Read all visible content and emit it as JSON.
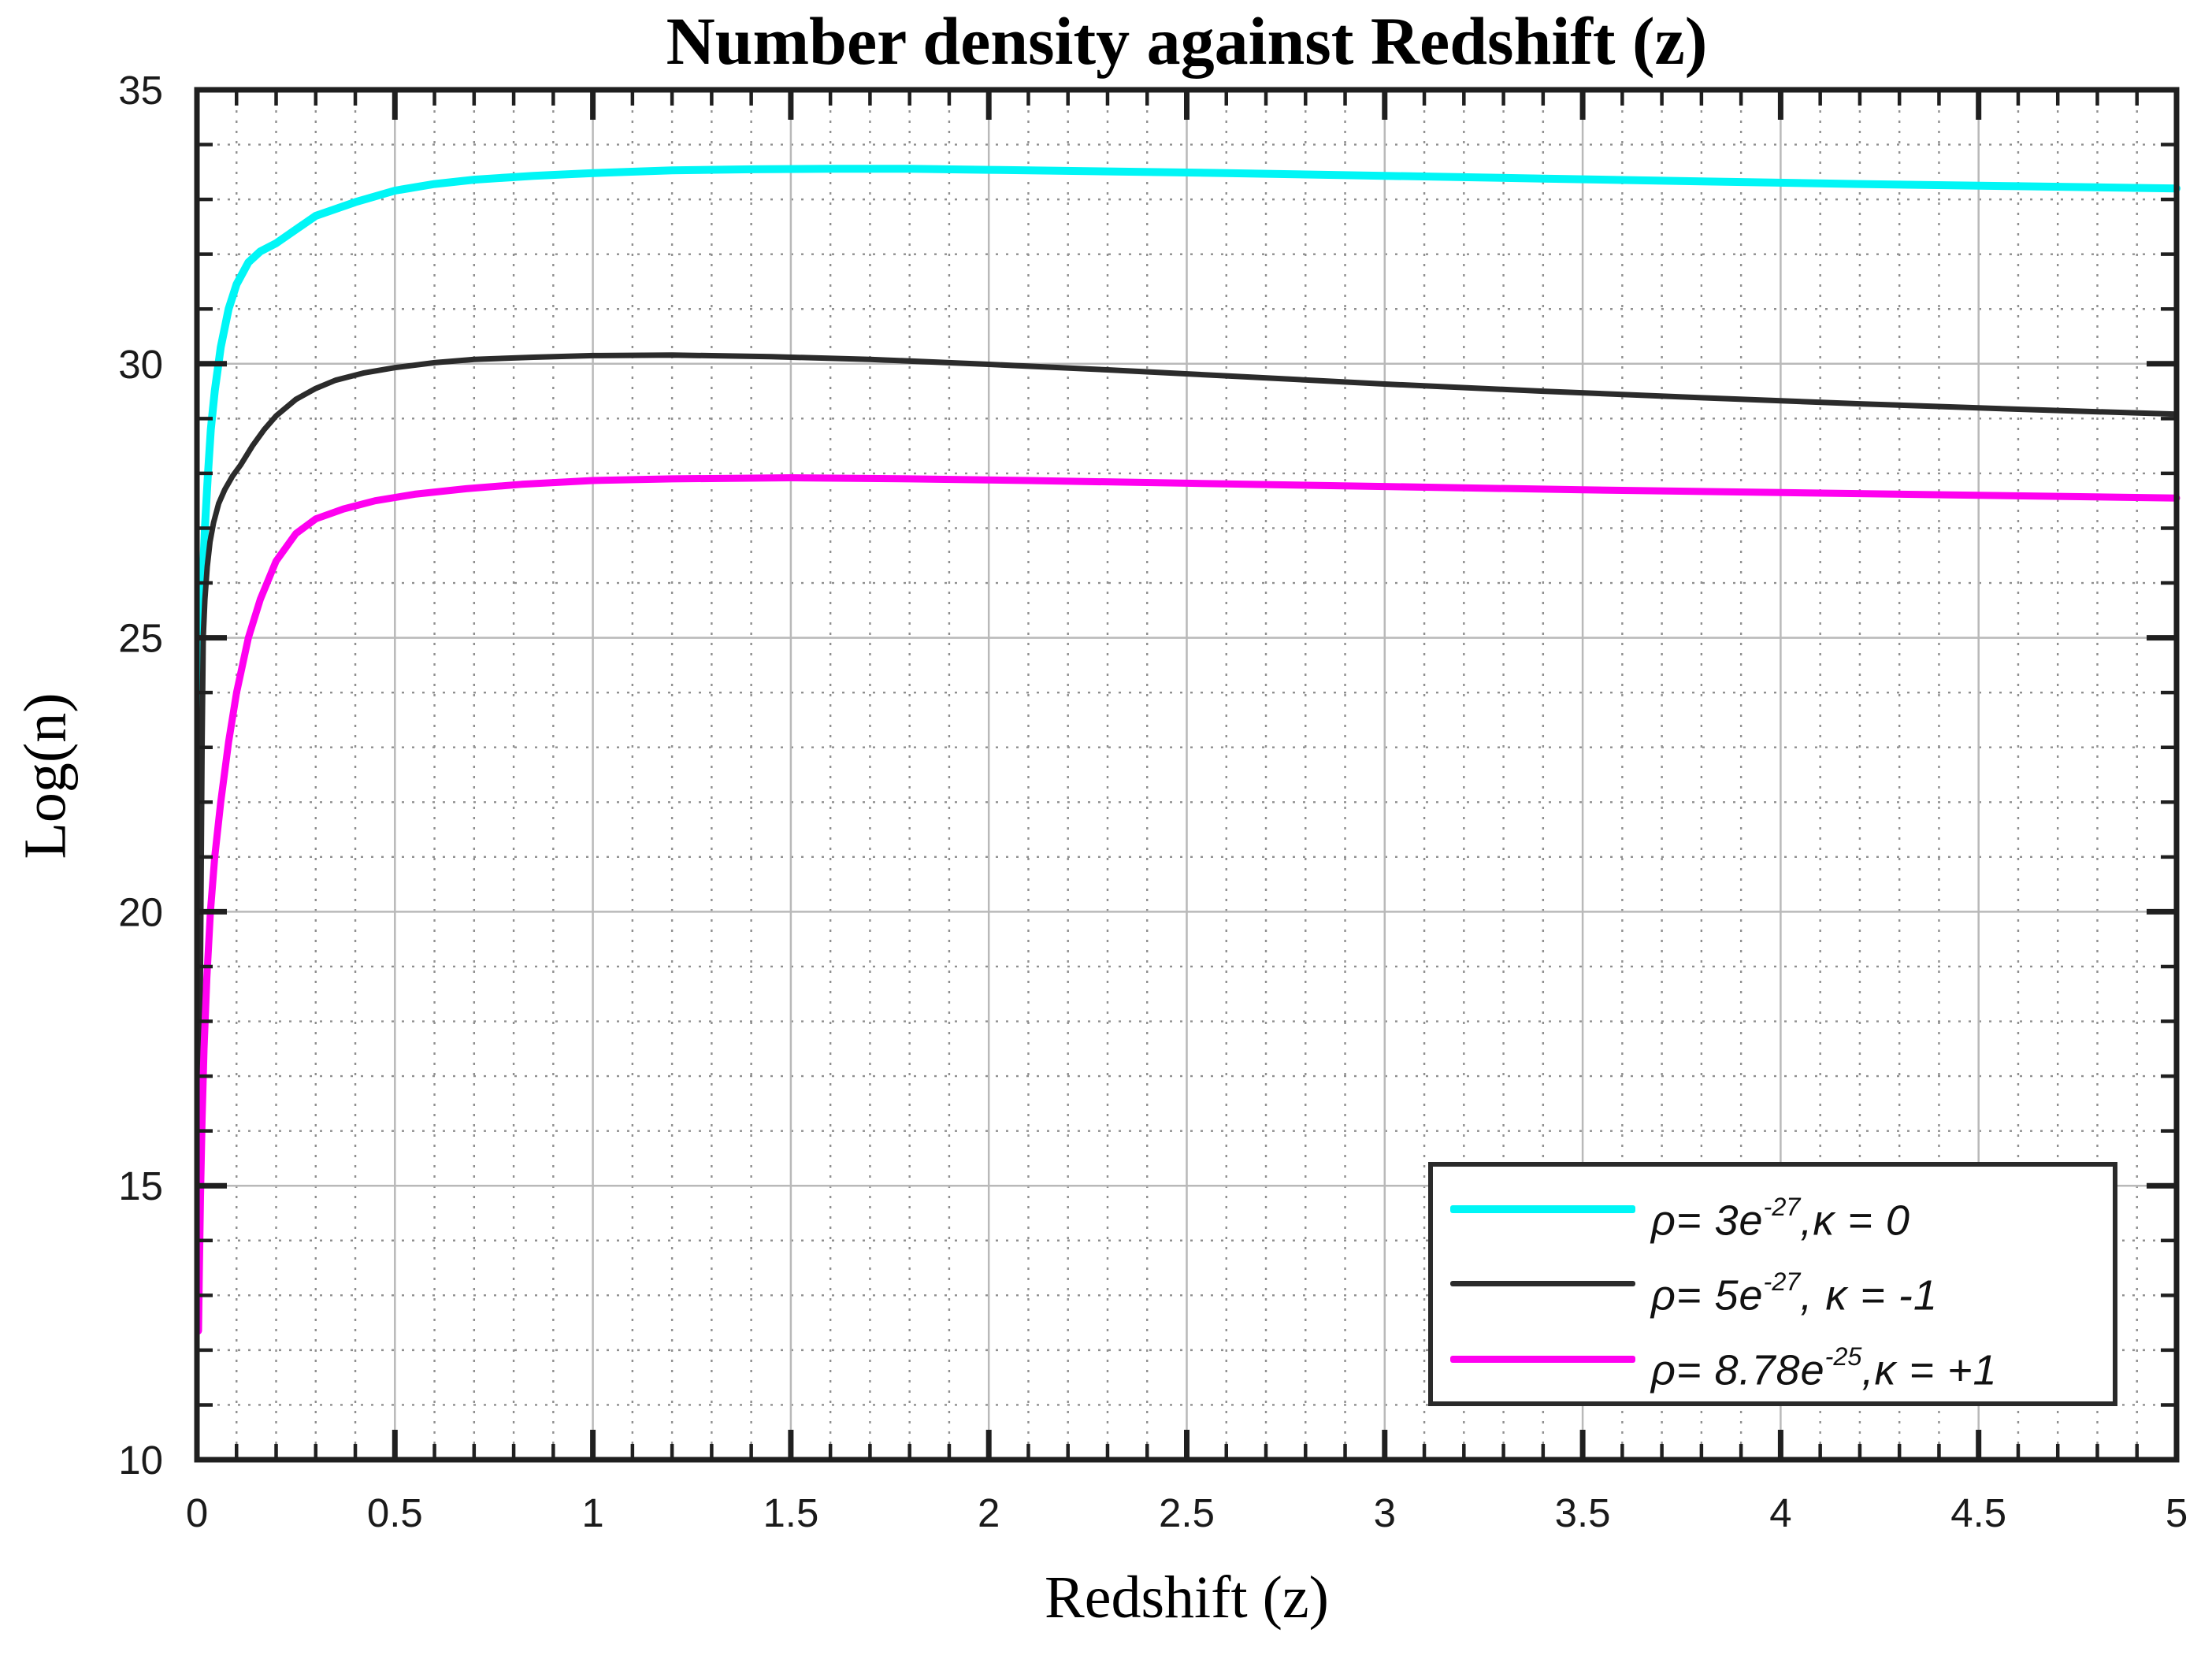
{
  "chart_data": {
    "type": "line",
    "title": "Number density against Redshift (z)",
    "xlabel": "Redshift (z)",
    "ylabel": "Log(n)",
    "xlim": [
      0,
      5
    ],
    "ylim": [
      10,
      35
    ],
    "x_axis": {
      "major_ticks": [
        0,
        0.5,
        1,
        1.5,
        2,
        2.5,
        3,
        3.5,
        4,
        4.5,
        5
      ],
      "tick_labels": [
        "0",
        "0.5",
        "1",
        "1.5",
        "2",
        "2.5",
        "3",
        "3.5",
        "4",
        "4.5",
        "5"
      ],
      "minor_step": 0.1
    },
    "y_axis": {
      "major_ticks": [
        10,
        15,
        20,
        25,
        30,
        35
      ],
      "tick_labels": [
        "10",
        "15",
        "20",
        "25",
        "30",
        "35"
      ],
      "minor_step": 1
    },
    "grid": {
      "major_on": true,
      "minor_on": true,
      "major_color": "#b9b9b9",
      "minor_color": "#8f8f8f",
      "minor_style": "dotted"
    },
    "frame_color": "#1f1f1f",
    "legend_position": "lower right",
    "series": [
      {
        "name": "rho = 3e-27, kappa = 0",
        "color": "#00f6f6",
        "line_width": 10,
        "legend_prefix": "ρ= 3e",
        "legend_exp": "-27",
        "legend_suffix": ",κ = 0",
        "points": [
          [
            0.003,
            21.5
          ],
          [
            0.005,
            22.8
          ],
          [
            0.007,
            23.8
          ],
          [
            0.01,
            24.9
          ],
          [
            0.014,
            25.9
          ],
          [
            0.02,
            27.0
          ],
          [
            0.027,
            27.9
          ],
          [
            0.035,
            28.8
          ],
          [
            0.045,
            29.5
          ],
          [
            0.06,
            30.3
          ],
          [
            0.08,
            31.0
          ],
          [
            0.1,
            31.45
          ],
          [
            0.13,
            31.85
          ],
          [
            0.16,
            32.05
          ],
          [
            0.2,
            32.2
          ],
          [
            0.25,
            32.45
          ],
          [
            0.3,
            32.7
          ],
          [
            0.4,
            32.95
          ],
          [
            0.5,
            33.16
          ],
          [
            0.6,
            33.28
          ],
          [
            0.7,
            33.36
          ],
          [
            0.85,
            33.43
          ],
          [
            1.0,
            33.48
          ],
          [
            1.2,
            33.53
          ],
          [
            1.4,
            33.55
          ],
          [
            1.6,
            33.56
          ],
          [
            1.8,
            33.56
          ],
          [
            2.0,
            33.54
          ],
          [
            2.3,
            33.51
          ],
          [
            2.6,
            33.48
          ],
          [
            3.0,
            33.43
          ],
          [
            3.4,
            33.38
          ],
          [
            3.8,
            33.33
          ],
          [
            4.2,
            33.28
          ],
          [
            4.6,
            33.24
          ],
          [
            5.0,
            33.2
          ]
        ]
      },
      {
        "name": "rho = 5e-27, kappa = -1",
        "color": "#2b2b2b",
        "line_width": 7,
        "legend_prefix": "ρ= 5e",
        "legend_exp": "-27",
        "legend_suffix": ", κ = -1",
        "points": [
          [
            0.004,
            12.5
          ],
          [
            0.006,
            15.5
          ],
          [
            0.008,
            18.0
          ],
          [
            0.011,
            21.0
          ],
          [
            0.013,
            23.0
          ],
          [
            0.016,
            25.0
          ],
          [
            0.02,
            25.7
          ],
          [
            0.026,
            26.3
          ],
          [
            0.033,
            26.75
          ],
          [
            0.042,
            27.1
          ],
          [
            0.055,
            27.45
          ],
          [
            0.07,
            27.7
          ],
          [
            0.09,
            27.95
          ],
          [
            0.11,
            28.15
          ],
          [
            0.14,
            28.5
          ],
          [
            0.17,
            28.8
          ],
          [
            0.2,
            29.05
          ],
          [
            0.25,
            29.35
          ],
          [
            0.3,
            29.55
          ],
          [
            0.35,
            29.7
          ],
          [
            0.42,
            29.83
          ],
          [
            0.5,
            29.93
          ],
          [
            0.6,
            30.02
          ],
          [
            0.7,
            30.08
          ],
          [
            0.85,
            30.12
          ],
          [
            1.0,
            30.15
          ],
          [
            1.2,
            30.16
          ],
          [
            1.45,
            30.13
          ],
          [
            1.7,
            30.08
          ],
          [
            2.0,
            29.99
          ],
          [
            2.3,
            29.89
          ],
          [
            2.6,
            29.78
          ],
          [
            3.0,
            29.63
          ],
          [
            3.4,
            29.5
          ],
          [
            3.8,
            29.38
          ],
          [
            4.2,
            29.27
          ],
          [
            4.6,
            29.17
          ],
          [
            5.0,
            29.08
          ]
        ]
      },
      {
        "name": "rho = 8.78e-25, kappa = +1",
        "color": "#ff00f0",
        "line_width": 9,
        "legend_prefix": "ρ= 8.78e",
        "legend_exp": "-25",
        "legend_suffix": ",κ = +1",
        "points": [
          [
            0.004,
            12.35
          ],
          [
            0.006,
            13.4
          ],
          [
            0.009,
            14.8
          ],
          [
            0.013,
            16.2
          ],
          [
            0.018,
            17.5
          ],
          [
            0.025,
            18.8
          ],
          [
            0.034,
            20.0
          ],
          [
            0.045,
            21.0
          ],
          [
            0.06,
            22.0
          ],
          [
            0.08,
            23.1
          ],
          [
            0.1,
            24.0
          ],
          [
            0.13,
            25.0
          ],
          [
            0.16,
            25.7
          ],
          [
            0.2,
            26.4
          ],
          [
            0.25,
            26.9
          ],
          [
            0.3,
            27.17
          ],
          [
            0.37,
            27.35
          ],
          [
            0.45,
            27.5
          ],
          [
            0.55,
            27.62
          ],
          [
            0.68,
            27.72
          ],
          [
            0.82,
            27.8
          ],
          [
            1.0,
            27.87
          ],
          [
            1.2,
            27.9
          ],
          [
            1.5,
            27.92
          ],
          [
            1.8,
            27.9
          ],
          [
            2.1,
            27.87
          ],
          [
            2.5,
            27.82
          ],
          [
            3.0,
            27.76
          ],
          [
            3.5,
            27.7
          ],
          [
            4.0,
            27.65
          ],
          [
            4.5,
            27.6
          ],
          [
            5.0,
            27.55
          ]
        ]
      }
    ]
  }
}
